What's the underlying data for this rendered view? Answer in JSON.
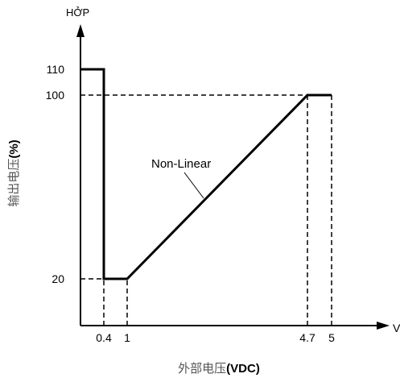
{
  "chart_data": {
    "type": "line",
    "title": "",
    "ylabel": {
      "main": "输出电压",
      "unit": "(%)"
    },
    "xlabel": {
      "main": "外部电压",
      "unit": "(VDC)"
    },
    "y_axis_end_label": "HỞP",
    "x_axis_end_label": "V",
    "x_ticks": [
      {
        "value": 0.4,
        "label": "0.4"
      },
      {
        "value": 1,
        "label": "1"
      },
      {
        "value": 4.7,
        "label": "4.7"
      },
      {
        "value": 5,
        "label": "5"
      }
    ],
    "y_ticks": [
      {
        "value": 20,
        "label": "20"
      },
      {
        "value": 100,
        "label": "100"
      },
      {
        "value": 110,
        "label": "110"
      }
    ],
    "annotation": "Non-Linear",
    "series": [
      {
        "values": [
          [
            0,
            110
          ],
          [
            0.4,
            110
          ],
          [
            0.4,
            20
          ],
          [
            1,
            20
          ],
          [
            4.7,
            100
          ],
          [
            5,
            100
          ]
        ]
      }
    ],
    "guide_lines": [
      {
        "from": [
          0,
          20
        ],
        "to": [
          0.4,
          20
        ]
      },
      {
        "from": [
          0.4,
          0
        ],
        "to": [
          0.4,
          20
        ]
      },
      {
        "from": [
          1,
          0
        ],
        "to": [
          1,
          20
        ]
      },
      {
        "from": [
          0,
          100
        ],
        "to": [
          4.7,
          100
        ]
      },
      {
        "from": [
          4.7,
          0
        ],
        "to": [
          4.7,
          100
        ]
      },
      {
        "from": [
          5,
          0
        ],
        "to": [
          5,
          100
        ]
      }
    ],
    "colors": {
      "line": "#000000",
      "label_gray": "#555555"
    }
  }
}
